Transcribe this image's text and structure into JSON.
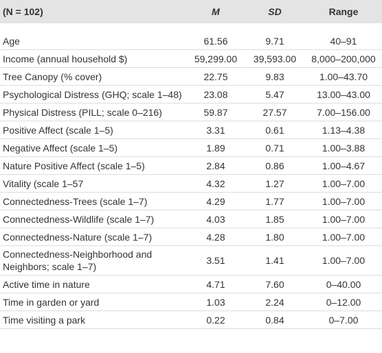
{
  "table": {
    "header": [
      "(N = 102)",
      "M",
      "SD",
      "Range"
    ],
    "rows": [
      [
        "Age",
        "61.56",
        "9.71",
        "40–91"
      ],
      [
        "Income (annual household $)",
        "59,299.00",
        "39,593.00",
        "8,000–200,000"
      ],
      [
        "Tree Canopy (% cover)",
        "22.75",
        "9.83",
        "1.00–43.70"
      ],
      [
        "Psychological Distress (GHQ; scale 1–48)",
        "23.08",
        "5.47",
        "13.00–43.00"
      ],
      [
        "Physical Distress (PILL; scale 0–216)",
        "59.87",
        "27.57",
        "7.00–156.00"
      ],
      [
        "Positive Affect (scale 1–5)",
        "3.31",
        "0.61",
        "1.13–4.38"
      ],
      [
        "Negative Affect (scale 1–5)",
        "1.89",
        "0.71",
        "1.00–3.88"
      ],
      [
        "Nature Positive Affect (scale 1–5)",
        "2.84",
        "0.86",
        "1.00–4.67"
      ],
      [
        "Vitality (scale 1–57",
        "4.32",
        "1.27",
        "1.00–7.00"
      ],
      [
        "Connectedness-Trees (scale 1–7)",
        "4.29",
        "1.77",
        "1.00–7.00"
      ],
      [
        "Connectedness-Wildlife (scale 1–7)",
        "4.03",
        "1.85",
        "1.00–7.00"
      ],
      [
        "Connectedness-Nature (scale 1–7)",
        "4.28",
        "1.80",
        "1.00–7.00"
      ],
      [
        "Connectedness-Neighborhood and Neighbors; scale 1–7)",
        "3.51",
        "1.41",
        "1.00–7.00"
      ],
      [
        "Active time in nature",
        "4.71",
        "7.60",
        "0–40.00"
      ],
      [
        "Time in garden or yard",
        "1.03",
        "2.24",
        "0–12.00"
      ],
      [
        "Time visiting a park",
        "0.22",
        "0.84",
        "0–7.00"
      ]
    ]
  }
}
